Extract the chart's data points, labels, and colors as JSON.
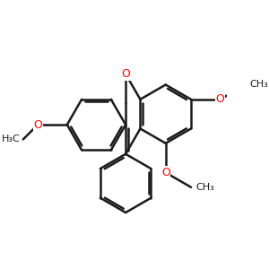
{
  "bg_color": "#ffffff",
  "bond_color": "#1a1a1a",
  "oxygen_color": "#ff0000",
  "bond_lw": 1.8,
  "dbo": 0.08,
  "figsize": [
    3.0,
    3.0
  ],
  "dpi": 100,
  "xlim": [
    -3.8,
    3.6
  ],
  "ylim": [
    -3.2,
    2.8
  ]
}
